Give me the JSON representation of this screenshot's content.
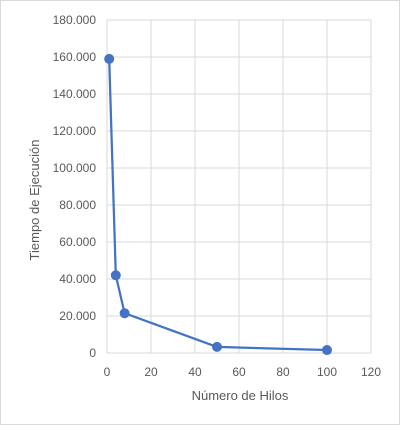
{
  "chart_data": {
    "type": "scatter",
    "title": "",
    "xlabel": "Número de Hilos",
    "ylabel": "Tiempo de Ejecución",
    "xlim": [
      0,
      120
    ],
    "ylim": [
      0,
      180000
    ],
    "x_ticks": [
      "0",
      "20",
      "40",
      "60",
      "80",
      "100",
      "120"
    ],
    "y_ticks": [
      "0",
      "20.000",
      "40.000",
      "60.000",
      "80.000",
      "100.000",
      "120.000",
      "140.000",
      "160.000",
      "180.000"
    ],
    "grid": true,
    "legend": "none",
    "series": [
      {
        "color": "#4472c4",
        "points": [
          {
            "x": 1,
            "y": 159000
          },
          {
            "x": 4,
            "y": 42000
          },
          {
            "x": 8,
            "y": 21500
          },
          {
            "x": 50,
            "y": 3300
          },
          {
            "x": 100,
            "y": 1600
          }
        ]
      }
    ]
  }
}
